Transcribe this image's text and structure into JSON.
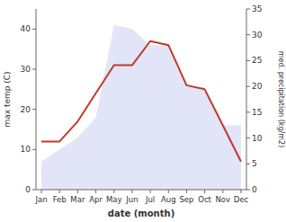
{
  "chart_data": {
    "type": "line",
    "xlabel": "date (month)",
    "ylabel": "max temp (C)",
    "y2label": "med. precipitation (kg/m2)",
    "categories": [
      "Jan",
      "Feb",
      "Mar",
      "Apr",
      "May",
      "Jun",
      "Jul",
      "Aug",
      "Sep",
      "Oct",
      "Nov",
      "Dec"
    ],
    "series": [
      {
        "type": "area",
        "color": "#c8d0f0",
        "values": [
          7,
          10,
          13,
          18,
          41,
          40,
          36,
          36,
          26,
          25,
          16,
          16
        ]
      },
      {
        "type": "line",
        "color": "#c0392b",
        "values": [
          12,
          12,
          17,
          24,
          31,
          31,
          37,
          36,
          26,
          25,
          16,
          7
        ]
      }
    ],
    "ylim": [
      0,
      45
    ],
    "yticks": [
      0,
      10,
      20,
      30,
      40
    ],
    "y2lim": [
      0,
      35
    ],
    "y2ticks": [
      0,
      5,
      10,
      15,
      20,
      25,
      30,
      35
    ],
    "grid": false
  }
}
